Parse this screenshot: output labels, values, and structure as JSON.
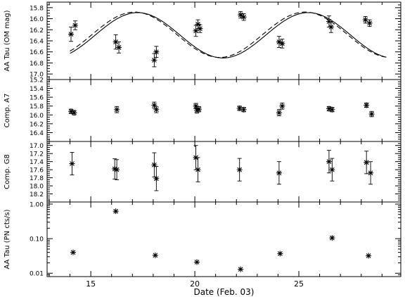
{
  "chart_data": [
    {
      "type": "scatter",
      "ylabel": "AA Tau (OM mag)",
      "ylim": [
        17.1,
        15.7
      ],
      "y_scale": "linear",
      "y_inverted": true,
      "yticks": [
        15.8,
        16.0,
        16.2,
        16.4,
        16.6,
        16.8,
        17.0
      ],
      "ytick_labels": [
        "15.8",
        "16.0",
        "16.2",
        "16.4",
        "16.6",
        "16.8",
        "17.0"
      ],
      "points": [
        {
          "x": 14.05,
          "y": 16.28,
          "err": 0.13
        },
        {
          "x": 14.25,
          "y": 16.12,
          "err": 0.08
        },
        {
          "x": 16.2,
          "y": 16.42,
          "err": 0.13
        },
        {
          "x": 16.35,
          "y": 16.52,
          "err": 0.1
        },
        {
          "x": 18.05,
          "y": 16.75,
          "err": 0.12
        },
        {
          "x": 18.15,
          "y": 16.6,
          "err": 0.1
        },
        {
          "x": 20.05,
          "y": 16.22,
          "err": 0.1
        },
        {
          "x": 20.15,
          "y": 16.1,
          "err": 0.08
        },
        {
          "x": 20.25,
          "y": 16.18,
          "err": 0.07
        },
        {
          "x": 22.2,
          "y": 15.93,
          "err": 0.06
        },
        {
          "x": 22.35,
          "y": 15.97,
          "err": 0.06
        },
        {
          "x": 24.05,
          "y": 16.42,
          "err": 0.1
        },
        {
          "x": 24.2,
          "y": 16.45,
          "err": 0.08
        },
        {
          "x": 26.45,
          "y": 16.05,
          "err": 0.1
        },
        {
          "x": 26.55,
          "y": 16.15,
          "err": 0.1
        },
        {
          "x": 28.2,
          "y": 16.02,
          "err": 0.06
        },
        {
          "x": 28.4,
          "y": 16.08,
          "err": 0.06
        }
      ],
      "curves": [
        {
          "style": "solid",
          "mean": 16.3,
          "amplitude": 0.41,
          "period": 8.2,
          "t_max": 21.35,
          "x_range": [
            14.0,
            29.2
          ]
        },
        {
          "style": "dashed",
          "mean": 16.29,
          "amplitude": 0.41,
          "period": 8.2,
          "t_max": 21.2,
          "x_range": [
            14.0,
            29.2
          ]
        }
      ]
    },
    {
      "type": "scatter",
      "ylabel": "Comp. A7",
      "ylim": [
        16.6,
        15.2
      ],
      "y_scale": "linear",
      "y_inverted": true,
      "yticks": [
        15.2,
        15.4,
        15.6,
        15.8,
        16.0,
        16.2,
        16.4
      ],
      "ytick_labels": [
        "15.2",
        "15.4",
        "15.6",
        "15.8",
        "16.0",
        "16.2",
        "16.4"
      ],
      "points": [
        {
          "x": 14.05,
          "y": 15.92,
          "err": 0.05
        },
        {
          "x": 14.2,
          "y": 15.95,
          "err": 0.05
        },
        {
          "x": 16.25,
          "y": 15.88,
          "err": 0.07
        },
        {
          "x": 18.05,
          "y": 15.78,
          "err": 0.07
        },
        {
          "x": 18.15,
          "y": 15.88,
          "err": 0.07
        },
        {
          "x": 20.05,
          "y": 15.8,
          "err": 0.06
        },
        {
          "x": 20.1,
          "y": 15.9,
          "err": 0.06
        },
        {
          "x": 20.2,
          "y": 15.87,
          "err": 0.06
        },
        {
          "x": 22.15,
          "y": 15.85,
          "err": 0.05
        },
        {
          "x": 22.35,
          "y": 15.88,
          "err": 0.05
        },
        {
          "x": 24.05,
          "y": 15.95,
          "err": 0.07
        },
        {
          "x": 24.2,
          "y": 15.8,
          "err": 0.07
        },
        {
          "x": 26.45,
          "y": 15.86,
          "err": 0.05
        },
        {
          "x": 26.6,
          "y": 15.88,
          "err": 0.05
        },
        {
          "x": 28.25,
          "y": 15.78,
          "err": 0.05
        },
        {
          "x": 28.5,
          "y": 15.98,
          "err": 0.06
        }
      ]
    },
    {
      "type": "scatter",
      "ylabel": "Comp. G8",
      "ylim": [
        18.4,
        16.9
      ],
      "y_scale": "linear",
      "y_inverted": true,
      "yticks": [
        17.0,
        17.2,
        17.4,
        17.6,
        17.8,
        18.0,
        18.2
      ],
      "ytick_labels": [
        "17.0",
        "17.2",
        "17.4",
        "17.6",
        "17.8",
        "18.0",
        "18.2"
      ],
      "points": [
        {
          "x": 14.1,
          "y": 17.45,
          "err": 0.28
        },
        {
          "x": 16.15,
          "y": 17.58,
          "err": 0.25
        },
        {
          "x": 16.25,
          "y": 17.6,
          "err": 0.25
        },
        {
          "x": 18.05,
          "y": 17.48,
          "err": 0.3
        },
        {
          "x": 18.15,
          "y": 17.82,
          "err": 0.3
        },
        {
          "x": 20.05,
          "y": 17.3,
          "err": 0.3
        },
        {
          "x": 20.15,
          "y": 17.6,
          "err": 0.3
        },
        {
          "x": 22.15,
          "y": 17.6,
          "err": 0.28
        },
        {
          "x": 24.05,
          "y": 17.68,
          "err": 0.28
        },
        {
          "x": 26.45,
          "y": 17.4,
          "err": 0.28
        },
        {
          "x": 26.6,
          "y": 17.6,
          "err": 0.28
        },
        {
          "x": 28.25,
          "y": 17.42,
          "err": 0.28
        },
        {
          "x": 28.45,
          "y": 17.68,
          "err": 0.28
        }
      ]
    },
    {
      "type": "scatter",
      "ylabel": "AA Tau (PN cts/s)",
      "xlabel": "Date (Feb. 03)",
      "xlim": [
        12.9,
        29.9
      ],
      "xticks": [
        15,
        20,
        25
      ],
      "xtick_labels": [
        "15",
        "20",
        "25"
      ],
      "ylim": [
        0.008,
        1.15
      ],
      "y_scale": "log",
      "yticks": [
        0.01,
        0.1,
        1.0
      ],
      "ytick_labels": [
        "0.01",
        "0.10",
        "1.00"
      ],
      "points": [
        {
          "x": 14.15,
          "y": 0.04
        },
        {
          "x": 16.2,
          "y": 0.62
        },
        {
          "x": 18.1,
          "y": 0.033
        },
        {
          "x": 20.1,
          "y": 0.021
        },
        {
          "x": 22.2,
          "y": 0.013
        },
        {
          "x": 24.1,
          "y": 0.037
        },
        {
          "x": 26.6,
          "y": 0.105
        },
        {
          "x": 28.35,
          "y": 0.032
        }
      ]
    }
  ]
}
